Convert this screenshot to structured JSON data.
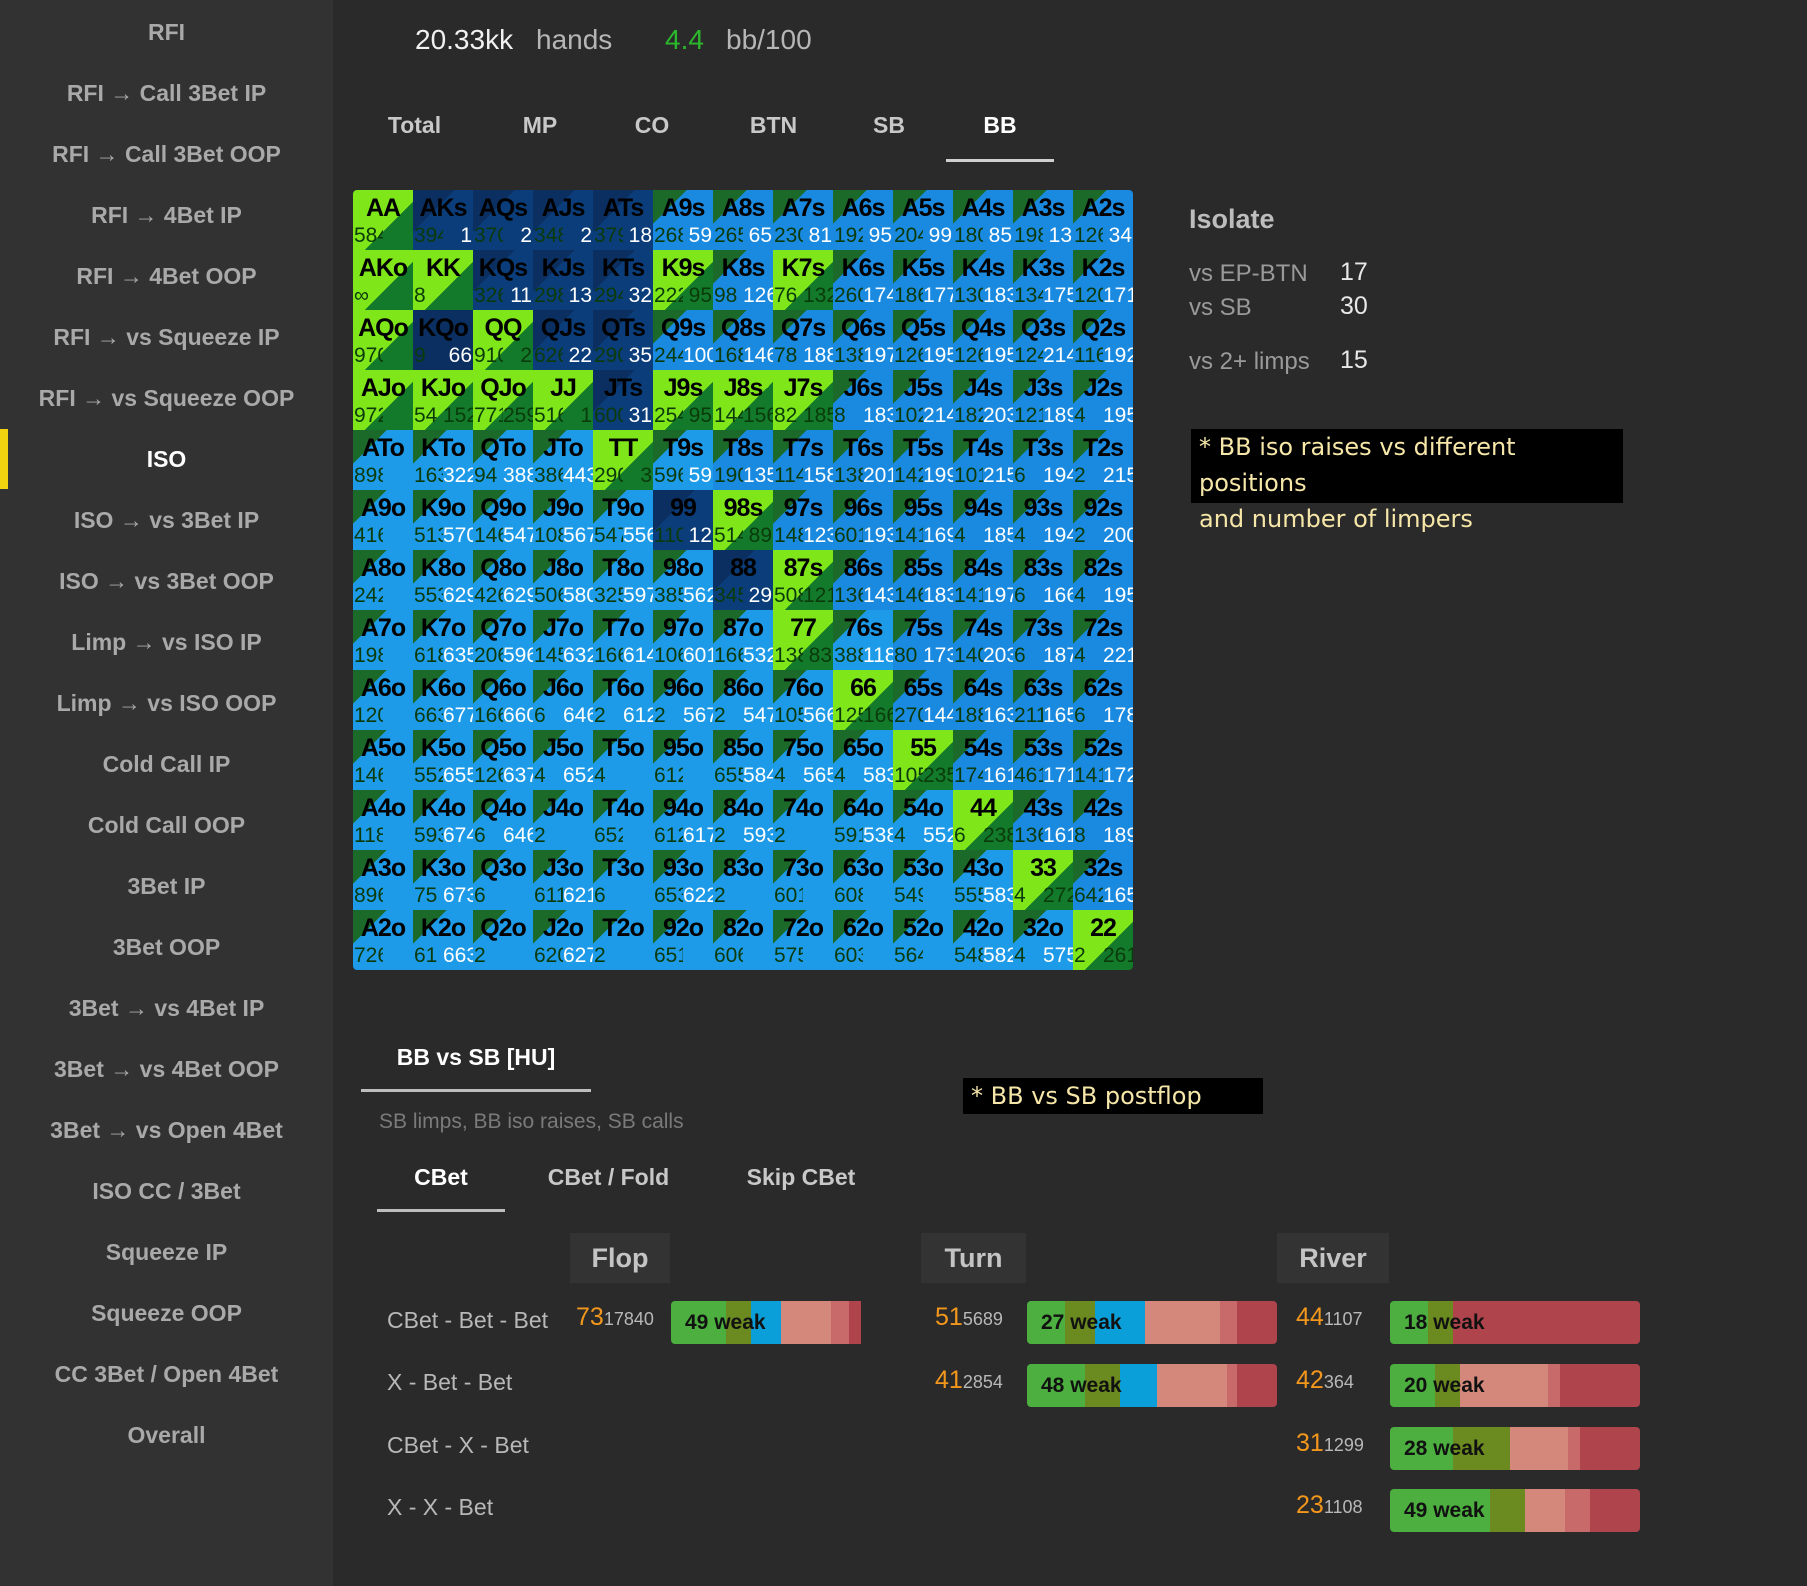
{
  "sidebar": {
    "items": [
      "RFI",
      "RFI → Call 3Bet IP",
      "RFI → Call 3Bet OOP",
      "RFI → 4Bet IP",
      "RFI → 4Bet OOP",
      "RFI → vs Squeeze IP",
      "RFI → vs Squeeze OOP",
      "ISO",
      "ISO → vs 3Bet IP",
      "ISO → vs 3Bet OOP",
      "Limp → vs ISO IP",
      "Limp → vs ISO OOP",
      "Cold Call IP",
      "Cold Call OOP",
      "3Bet IP",
      "3Bet OOP",
      "3Bet → vs 4Bet IP",
      "3Bet → vs 4Bet OOP",
      "3Bet → vs Open 4Bet",
      "ISO CC / 3Bet",
      "Squeeze IP",
      "Squeeze OOP",
      "CC 3Bet / Open 4Bet",
      "Overall"
    ],
    "active_index": 7
  },
  "stats": {
    "hands_value": "20.33kk",
    "hands_label": "hands",
    "winrate_value": "4.4",
    "winrate_label": "bb/100"
  },
  "position_tabs": [
    "Total",
    "MP",
    "CO",
    "BTN",
    "SB",
    "BB"
  ],
  "position_active": 5,
  "range_grid": {
    "hands": [
      [
        "AA",
        "AKs",
        "AQs",
        "AJs",
        "ATs",
        "A9s",
        "A8s",
        "A7s",
        "A6s",
        "A5s",
        "A4s",
        "A3s",
        "A2s"
      ],
      [
        "AKo",
        "KK",
        "KQs",
        "KJs",
        "KTs",
        "K9s",
        "K8s",
        "K7s",
        "K6s",
        "K5s",
        "K4s",
        "K3s",
        "K2s"
      ],
      [
        "AQo",
        "KQo",
        "QQ",
        "QJs",
        "QTs",
        "Q9s",
        "Q8s",
        "Q7s",
        "Q6s",
        "Q5s",
        "Q4s",
        "Q3s",
        "Q2s"
      ],
      [
        "AJo",
        "KJo",
        "QJo",
        "JJ",
        "JTs",
        "J9s",
        "J8s",
        "J7s",
        "J6s",
        "J5s",
        "J4s",
        "J3s",
        "J2s"
      ],
      [
        "ATo",
        "KTo",
        "QTo",
        "JTo",
        "TT",
        "T9s",
        "T8s",
        "T7s",
        "T6s",
        "T5s",
        "T4s",
        "T3s",
        "T2s"
      ],
      [
        "A9o",
        "K9o",
        "Q9o",
        "J9o",
        "T9o",
        "99",
        "98s",
        "97s",
        "96s",
        "95s",
        "94s",
        "93s",
        "92s"
      ],
      [
        "A8o",
        "K8o",
        "Q8o",
        "J8o",
        "T8o",
        "98o",
        "88",
        "87s",
        "86s",
        "85s",
        "84s",
        "83s",
        "82s"
      ],
      [
        "A7o",
        "K7o",
        "Q7o",
        "J7o",
        "T7o",
        "97o",
        "87o",
        "77",
        "76s",
        "75s",
        "74s",
        "73s",
        "72s"
      ],
      [
        "A6o",
        "K6o",
        "Q6o",
        "J6o",
        "T6o",
        "96o",
        "86o",
        "76o",
        "66",
        "65s",
        "64s",
        "63s",
        "62s"
      ],
      [
        "A5o",
        "K5o",
        "Q5o",
        "J5o",
        "T5o",
        "95o",
        "85o",
        "75o",
        "65o",
        "55",
        "54s",
        "53s",
        "52s"
      ],
      [
        "A4o",
        "K4o",
        "Q4o",
        "J4o",
        "T4o",
        "94o",
        "84o",
        "74o",
        "64o",
        "54o",
        "44",
        "43s",
        "42s"
      ],
      [
        "A3o",
        "K3o",
        "Q3o",
        "J3o",
        "T3o",
        "93o",
        "83o",
        "73o",
        "63o",
        "53o",
        "43o",
        "33",
        "32s"
      ],
      [
        "A2o",
        "K2o",
        "Q2o",
        "J2o",
        "T2o",
        "92o",
        "82o",
        "72o",
        "62o",
        "52o",
        "42o",
        "32o",
        "22"
      ]
    ],
    "left_counts": [
      [
        "584",
        "394",
        "370",
        "348",
        "379",
        "268",
        "265",
        "230",
        "192",
        "204",
        "180",
        "198",
        "126"
      ],
      [
        "∞",
        "8",
        "326",
        "298",
        "294",
        "222",
        "98",
        "76",
        "260",
        "186",
        "130",
        "134",
        "120"
      ],
      [
        "970",
        "9",
        "910",
        "626",
        "290",
        "244",
        "168",
        "78",
        "138",
        "126",
        "126",
        "124",
        "116"
      ],
      [
        "972",
        "54",
        "771",
        "516",
        "600",
        "254",
        "144",
        "82",
        "8",
        "102",
        "182",
        "121",
        "4"
      ],
      [
        "898",
        "163",
        "94",
        "386",
        "290",
        "596",
        "190",
        "114",
        "138",
        "142",
        "101",
        "6",
        "2"
      ],
      [
        "416",
        "513",
        "146",
        "108",
        "547",
        "110",
        "514",
        "148",
        "601",
        "141",
        "4",
        "4",
        "2"
      ],
      [
        "242",
        "553",
        "426",
        "506",
        "325",
        "385",
        "345",
        "508",
        "136",
        "146",
        "141",
        "6",
        "4"
      ],
      [
        "198",
        "618",
        "206",
        "145",
        "166",
        "106",
        "166",
        "138",
        "388",
        "80",
        "140",
        "6",
        "4"
      ],
      [
        "120",
        "663",
        "166",
        "6",
        "2",
        "2",
        "2",
        "105",
        "125",
        "270",
        "188",
        "211",
        "6"
      ],
      [
        "146",
        "552",
        "126",
        "4",
        "4",
        "612",
        "655",
        "4",
        "4",
        "105",
        "174",
        "461",
        "141"
      ],
      [
        "118",
        "593",
        "6",
        "2",
        "652",
        "612",
        "2",
        "2",
        "591",
        "4",
        "6",
        "136",
        "8"
      ],
      [
        "896",
        "75",
        "6",
        "611",
        "6",
        "653",
        "2",
        "601",
        "608",
        "549",
        "555",
        "4",
        "642"
      ],
      [
        "726",
        "61",
        "2",
        "620",
        "2",
        "651",
        "606",
        "575",
        "603",
        "564",
        "548",
        "4",
        "2"
      ]
    ],
    "right_counts": [
      [
        "",
        "1",
        "2",
        "2",
        "18",
        "59",
        "65",
        "81",
        "95",
        "99",
        "85",
        "13",
        "34"
      ],
      [
        "",
        "",
        "11",
        "13",
        "32",
        "95",
        "126",
        "132",
        "174",
        "177",
        "183",
        "175",
        "171"
      ],
      [
        "",
        "66",
        "2",
        "22",
        "35",
        "100",
        "146",
        "188",
        "197",
        "195",
        "195",
        "214",
        "192"
      ],
      [
        "",
        "152",
        "259",
        "1",
        "31",
        "95",
        "156",
        "185",
        "183",
        "214",
        "203",
        "189",
        "195"
      ],
      [
        "",
        "322",
        "388",
        "443",
        "3",
        "59",
        "135",
        "158",
        "201",
        "199",
        "215",
        "194",
        "215"
      ],
      [
        "",
        "570",
        "547",
        "567",
        "556",
        "12",
        "89",
        "123",
        "193",
        "169",
        "185",
        "194",
        "200"
      ],
      [
        "",
        "629",
        "629",
        "580",
        "597",
        "562",
        "29",
        "121",
        "143",
        "183",
        "197",
        "166",
        "195"
      ],
      [
        "",
        "635",
        "596",
        "632",
        "614",
        "601",
        "532",
        "83",
        "118",
        "173",
        "203",
        "187",
        "221"
      ],
      [
        "",
        "677",
        "660",
        "646",
        "612",
        "567",
        "547",
        "566",
        "166",
        "144",
        "163",
        "165",
        "178"
      ],
      [
        "",
        "655",
        "637",
        "652",
        "",
        "",
        "584",
        "565",
        "583",
        "235",
        "161",
        "171",
        "172"
      ],
      [
        "",
        "674",
        "646",
        "",
        "",
        "617",
        "593",
        "",
        "538",
        "552",
        "238",
        "161",
        "189"
      ],
      [
        "",
        "673",
        "",
        "621",
        "",
        "622",
        "",
        "",
        "",
        "",
        "583",
        "272",
        "165"
      ],
      [
        "",
        "663",
        "",
        "627",
        "",
        "",
        "",
        "",
        "",
        "",
        "582",
        "575",
        "261"
      ]
    ],
    "colors": [
      [
        0,
        3,
        3,
        3,
        3,
        2,
        2,
        2,
        2,
        2,
        2,
        2,
        2
      ],
      [
        0,
        0,
        3,
        3,
        3,
        0,
        2,
        0,
        2,
        2,
        2,
        2,
        2
      ],
      [
        0,
        4,
        0,
        3,
        3,
        2,
        2,
        2,
        2,
        2,
        2,
        2,
        2
      ],
      [
        0,
        0,
        0,
        0,
        3,
        0,
        0,
        0,
        2,
        2,
        2,
        2,
        2
      ],
      [
        1,
        1,
        1,
        1,
        0,
        1,
        2,
        2,
        2,
        2,
        2,
        2,
        2
      ],
      [
        1,
        1,
        1,
        1,
        1,
        3,
        0,
        2,
        2,
        2,
        2,
        2,
        2
      ],
      [
        1,
        1,
        1,
        1,
        1,
        1,
        3,
        0,
        2,
        2,
        2,
        2,
        2
      ],
      [
        1,
        1,
        1,
        1,
        1,
        1,
        1,
        0,
        1,
        2,
        2,
        2,
        2
      ],
      [
        1,
        1,
        1,
        1,
        1,
        1,
        1,
        1,
        0,
        2,
        2,
        2,
        2
      ],
      [
        1,
        1,
        1,
        1,
        1,
        1,
        1,
        1,
        1,
        0,
        2,
        2,
        2
      ],
      [
        1,
        1,
        1,
        1,
        1,
        1,
        1,
        1,
        1,
        1,
        0,
        2,
        2
      ],
      [
        1,
        1,
        1,
        1,
        1,
        1,
        1,
        1,
        1,
        1,
        1,
        0,
        2
      ],
      [
        1,
        1,
        1,
        1,
        1,
        1,
        1,
        1,
        1,
        1,
        1,
        1,
        0
      ]
    ],
    "palette": [
      "#7fe61a",
      "#1e9be8",
      "#1a8ae0",
      "#0b3d7a",
      "#0a2f60"
    ]
  },
  "isolate": {
    "title": "Isolate",
    "rows": [
      {
        "label": "vs EP-BTN",
        "value": "17"
      },
      {
        "label": "vs SB",
        "value": "30"
      },
      {
        "label": "vs 2+ limps",
        "value": "15"
      }
    ]
  },
  "note1": [
    "* BB iso raises vs different positions",
    "and number of limpers"
  ],
  "note2": "* BB vs SB postflop",
  "matchup": {
    "tab": "BB vs SB [HU]",
    "description": "SB limps, BB iso raises, SB calls"
  },
  "action_tabs": [
    "CBet",
    "CBet / Fold",
    "Skip CBet"
  ],
  "action_active": 0,
  "streets": [
    "Flop",
    "Turn",
    "River"
  ],
  "lines": [
    "CBet - Bet - Bet",
    "X - Bet - Bet",
    "CBet - X - Bet",
    "X - X - Bet"
  ],
  "cells": [
    {
      "line": 0,
      "street": 0,
      "pct": "73",
      "count": "17840",
      "label": "49 weak"
    },
    {
      "line": 0,
      "street": 1,
      "pct": "51",
      "count": "5689",
      "label": "27 weak"
    },
    {
      "line": 0,
      "street": 2,
      "pct": "44",
      "count": "1107",
      "label": "18 weak"
    },
    {
      "line": 1,
      "street": 1,
      "pct": "41",
      "count": "2854",
      "label": "48 weak"
    },
    {
      "line": 1,
      "street": 2,
      "pct": "42",
      "count": "364",
      "label": "20 weak"
    },
    {
      "line": 2,
      "street": 2,
      "pct": "31",
      "count": "1299",
      "label": "28 weak"
    },
    {
      "line": 3,
      "street": 2,
      "pct": "23",
      "count": "1108",
      "label": "49 weak"
    }
  ],
  "bar_colors": {
    "green": "#4caf3f",
    "olive": "#6b8a1f",
    "blue": "#0a9fd8",
    "pink": "#d4887c",
    "rose": "#c86a6a",
    "red": "#b0444c"
  },
  "bar_segments": [
    [
      [
        "green",
        22
      ],
      [
        "olive",
        10
      ],
      [
        "blue",
        12
      ],
      [
        "pink",
        20
      ],
      [
        "rose",
        7
      ],
      [
        "red",
        5
      ]
    ],
    [
      [
        "green",
        15
      ],
      [
        "olive",
        12
      ],
      [
        "blue",
        20
      ],
      [
        "pink",
        30
      ],
      [
        "rose",
        7
      ],
      [
        "red",
        16
      ]
    ],
    [
      [
        "green",
        15
      ],
      [
        "olive",
        10
      ],
      [
        "pink",
        0
      ],
      [
        "red",
        75
      ]
    ],
    [
      [
        "green",
        23
      ],
      [
        "olive",
        14
      ],
      [
        "blue",
        15
      ],
      [
        "pink",
        28
      ],
      [
        "rose",
        4
      ],
      [
        "red",
        16
      ]
    ],
    [
      [
        "green",
        18
      ],
      [
        "olive",
        10
      ],
      [
        "pink",
        35
      ],
      [
        "rose",
        5
      ],
      [
        "red",
        32
      ]
    ],
    [
      [
        "green",
        25
      ],
      [
        "olive",
        23
      ],
      [
        "pink",
        23
      ],
      [
        "rose",
        5
      ],
      [
        "red",
        24
      ]
    ],
    [
      [
        "green",
        40
      ],
      [
        "olive",
        14
      ],
      [
        "pink",
        16
      ],
      [
        "rose",
        10
      ],
      [
        "red",
        20
      ]
    ]
  ]
}
